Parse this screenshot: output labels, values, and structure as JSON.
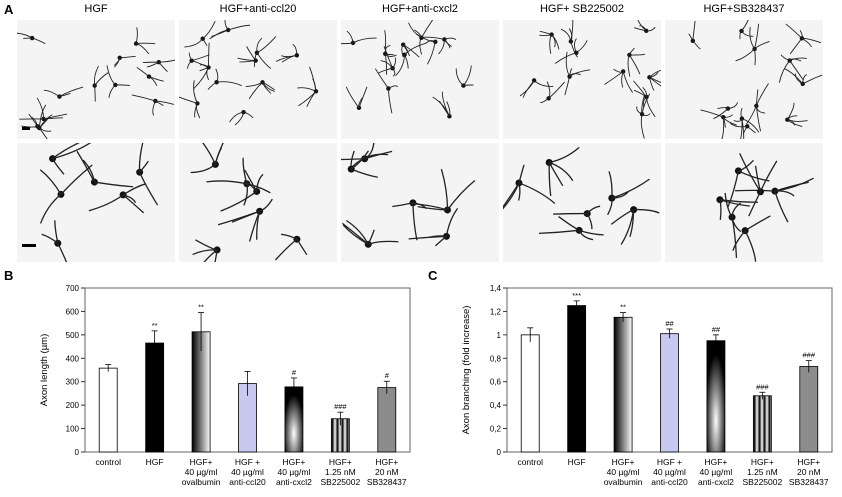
{
  "panels": {
    "a": "A",
    "b": "B",
    "c": "C"
  },
  "columns": [
    "HGF",
    "HGF+anti-ccl20",
    "HGF+anti-cxcl2",
    "HGF+ SB225002",
    "HGF+SB328437"
  ],
  "chart_data": [
    {
      "type": "bar",
      "panel": "B",
      "ylabel": "Axon length (µm)",
      "ylim": [
        0,
        700
      ],
      "yticks": [
        0,
        100,
        200,
        300,
        400,
        500,
        600,
        700
      ],
      "categories": [
        [
          "control"
        ],
        [
          "HGF"
        ],
        [
          "HGF+",
          "40 µg/ml",
          "ovalbumin"
        ],
        [
          "HGF +",
          "40 µg/ml",
          "anti-ccl20"
        ],
        [
          "HGF+",
          "40 µg/ml",
          "anti-cxcl2"
        ],
        [
          "HGF+",
          "1.25 nM",
          "SB225002"
        ],
        [
          "HGF+",
          "20 nM",
          "SB328437"
        ]
      ],
      "values": [
        358,
        465,
        513,
        292,
        278,
        142,
        275
      ],
      "errors": [
        15,
        52,
        82,
        52,
        38,
        28,
        27
      ],
      "annotations": [
        "",
        "**",
        "**",
        "",
        "#",
        "###",
        "#"
      ],
      "fills": [
        "#ffffff",
        "#000000",
        "gradient-black-white",
        "#c8c8f0",
        "radial-white-black",
        "stripes-vertical",
        "#8c8c8c"
      ]
    },
    {
      "type": "bar",
      "panel": "C",
      "ylabel": "Axon branching (fold increase)",
      "ylim": [
        0,
        1.4
      ],
      "yticks": [
        "0",
        "0,2",
        "0,4",
        "0,6",
        "0,8",
        "1",
        "1,2",
        "1,4"
      ],
      "categories": [
        [
          "control"
        ],
        [
          "HGF"
        ],
        [
          "HGF+",
          "40 µg/ml",
          "ovalbumin"
        ],
        [
          "HGF +",
          "40 µg/ml",
          "anti-ccl20"
        ],
        [
          "HGF+",
          "40 µg/ml",
          "anti-cxcl2"
        ],
        [
          "HGF+",
          "1.25 nM",
          "SB225002"
        ],
        [
          "HGF+",
          "20 nM",
          "SB328437"
        ]
      ],
      "values": [
        1.0,
        1.25,
        1.15,
        1.01,
        0.95,
        0.48,
        0.73
      ],
      "errors": [
        0.06,
        0.04,
        0.04,
        0.04,
        0.05,
        0.03,
        0.05
      ],
      "annotations": [
        "",
        "***",
        "**",
        "##",
        "##",
        "###",
        "###"
      ],
      "fills": [
        "#ffffff",
        "#000000",
        "gradient-black-white",
        "#c8c8f0",
        "radial-white-black",
        "stripes-vertical",
        "#8c8c8c"
      ]
    }
  ]
}
